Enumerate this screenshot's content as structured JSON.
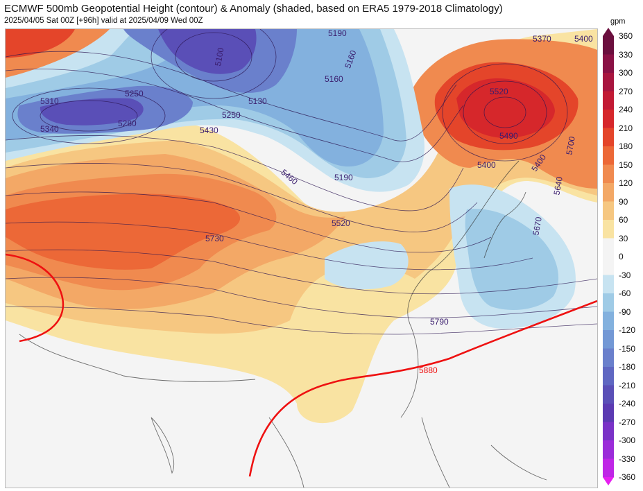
{
  "title": "ECMWF 500mb Geopotential Height (contour) & Anomaly (shaded, based on ERA5 1979-2018 Climatology)",
  "subtitle": "2025/04/05 Sat 00Z [+96h] valid at 2025/04/09 Wed 00Z",
  "colorbar": {
    "unit": "gpm",
    "ticks": [
      "360",
      "330",
      "300",
      "270",
      "240",
      "210",
      "180",
      "150",
      "120",
      "90",
      "60",
      "30",
      "0",
      "-30",
      "-60",
      "-90",
      "-120",
      "-150",
      "-180",
      "-210",
      "-240",
      "-270",
      "-300",
      "-330",
      "-360"
    ],
    "colors": [
      "#6b0f3e",
      "#8a1145",
      "#a8153f",
      "#c21a34",
      "#d6272b",
      "#e4452a",
      "#ec6837",
      "#f08a4f",
      "#f3a866",
      "#f6c781",
      "#f9e3a2",
      "#f4f4f4",
      "#f4f4f4",
      "#c7e3f1",
      "#9fcbe6",
      "#83b1de",
      "#7398d5",
      "#6a80cc",
      "#5f67c2",
      "#5a4fb7",
      "#5b3ab2",
      "#7a32c7",
      "#9b2cd9",
      "#bf26e6",
      "#e61ff0"
    ]
  },
  "contour_labels": [
    {
      "text": "5370",
      "color": "#3a1d6e"
    },
    {
      "text": "5400",
      "color": "#3a1d6e"
    },
    {
      "text": "5190",
      "color": "#3a1d6e"
    },
    {
      "text": "5160",
      "color": "#3a1d6e"
    },
    {
      "text": "5100",
      "color": "#3a1d6e"
    },
    {
      "text": "5310",
      "color": "#3a1d6e"
    },
    {
      "text": "5340",
      "color": "#3a1d6e"
    },
    {
      "text": "5250",
      "color": "#3a1d6e"
    },
    {
      "text": "5280",
      "color": "#3a1d6e"
    },
    {
      "text": "5130",
      "color": "#3a1d6e"
    },
    {
      "text": "5250",
      "color": "#3a1d6e"
    },
    {
      "text": "5430",
      "color": "#3a1d6e"
    },
    {
      "text": "5160",
      "color": "#3a1d6e"
    },
    {
      "text": "5190",
      "color": "#3a1d6e"
    },
    {
      "text": "5460",
      "color": "#3a1d6e"
    },
    {
      "text": "5520",
      "color": "#3a1d6e"
    },
    {
      "text": "5520",
      "color": "#3a1d6e"
    },
    {
      "text": "5490",
      "color": "#3a1d6e"
    },
    {
      "text": "5400",
      "color": "#3a1d6e"
    },
    {
      "text": "5400",
      "color": "#3a1d6e"
    },
    {
      "text": "5700",
      "color": "#3a1d6e"
    },
    {
      "text": "5640",
      "color": "#3a1d6e"
    },
    {
      "text": "5670",
      "color": "#3a1d6e"
    },
    {
      "text": "5730",
      "color": "#3a1d6e"
    },
    {
      "text": "5790",
      "color": "#3a1d6e"
    },
    {
      "text": "5880",
      "color": "#e11111"
    }
  ]
}
